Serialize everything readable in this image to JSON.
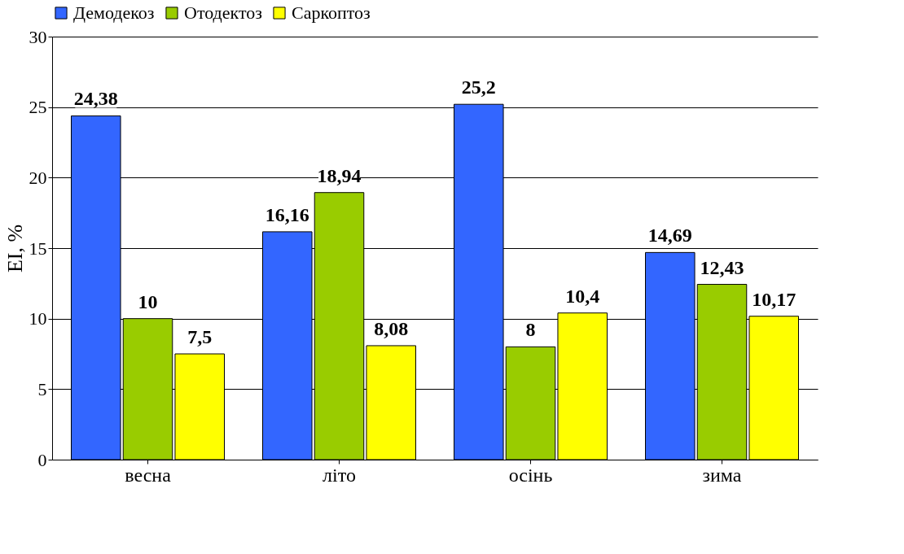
{
  "chart_data": {
    "type": "bar",
    "ylabel": "EI, %",
    "categories": [
      "весна",
      "літо",
      "осінь",
      "зима"
    ],
    "series": [
      {
        "name": "Демодекоз",
        "color": "#3366ff",
        "values": [
          24.38,
          16.16,
          25.2,
          14.69
        ],
        "value_labels": [
          "24,38",
          "16,16",
          "25,2",
          "14,69"
        ]
      },
      {
        "name": "Отодектоз",
        "color": "#99cc00",
        "values": [
          10,
          18.94,
          8,
          12.43
        ],
        "value_labels": [
          "10",
          "18,94",
          "8",
          "12,43"
        ]
      },
      {
        "name": "Саркоптоз",
        "color": "#ffff00",
        "values": [
          7.5,
          8.08,
          10.4,
          10.17
        ],
        "value_labels": [
          "7,5",
          "8,08",
          "10,4",
          "10,17"
        ]
      }
    ],
    "ylim": [
      0,
      30
    ],
    "yticks": [
      0,
      5,
      10,
      15,
      20,
      25,
      30
    ],
    "grid": "y",
    "legend": "top"
  }
}
